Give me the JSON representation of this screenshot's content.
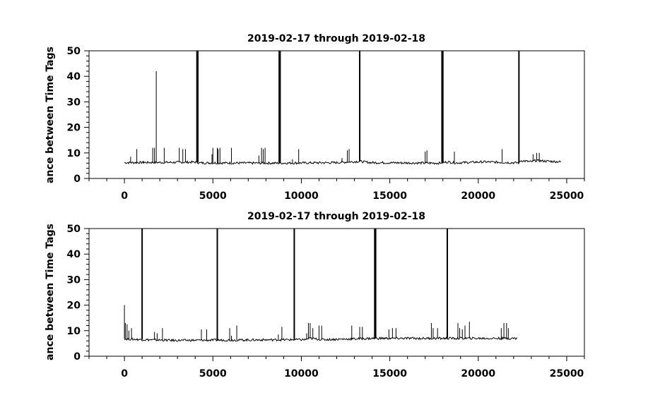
{
  "chart_data": [
    {
      "type": "line",
      "title": "2019-02-17 through 2019-02-18",
      "ylabel": "ance between Time Tags",
      "xlim": [
        -2000,
        26000
      ],
      "ylim": [
        0,
        50
      ],
      "xticks": [
        0,
        5000,
        10000,
        15000,
        20000,
        25000
      ],
      "xtick_labels": [
        "0",
        "5000",
        "10000",
        "15000",
        "20000",
        "25000"
      ],
      "yticks": [
        0,
        10,
        20,
        30,
        40,
        50
      ],
      "ytick_labels": [
        "0",
        "10",
        "20",
        "30",
        "40",
        "50"
      ],
      "grid": false,
      "series": [
        {
          "x_range": [
            0,
            24700
          ],
          "baseline": [
            [
              0,
              6.2
            ],
            [
              2800,
              6.3
            ],
            [
              4100,
              6.4
            ],
            [
              4200,
              6.1
            ],
            [
              8700,
              6.0
            ],
            [
              12000,
              6.2
            ],
            [
              13300,
              6.7
            ],
            [
              13900,
              6.2
            ],
            [
              17800,
              6.0
            ],
            [
              18300,
              6.5
            ],
            [
              18700,
              6.1
            ],
            [
              20300,
              6.5
            ],
            [
              22300,
              6.1
            ],
            [
              22400,
              7.0
            ],
            [
              23000,
              6.5
            ],
            [
              23200,
              7.0
            ],
            [
              24700,
              6.5
            ]
          ],
          "spikes": [
            [
              350,
              8.5
            ],
            [
              700,
              11.5
            ],
            [
              1100,
              6.8
            ],
            [
              1600,
              12.0
            ],
            [
              1700,
              12.0
            ],
            [
              1800,
              42.0
            ],
            [
              2250,
              12.0
            ],
            [
              3100,
              12.0
            ],
            [
              3300,
              11.5
            ],
            [
              3450,
              11.5
            ],
            [
              4100,
              50
            ],
            [
              4150,
              50
            ],
            [
              4950,
              9.5
            ],
            [
              5000,
              12.0
            ],
            [
              5250,
              12.0
            ],
            [
              5300,
              11.5
            ],
            [
              5400,
              12.0
            ],
            [
              6050,
              12.0
            ],
            [
              7600,
              9.0
            ],
            [
              7750,
              12.0
            ],
            [
              7850,
              11.5
            ],
            [
              7950,
              12.0
            ],
            [
              8750,
              50
            ],
            [
              8800,
              50
            ],
            [
              9500,
              7.5
            ],
            [
              9850,
              11.5
            ],
            [
              12300,
              8.0
            ],
            [
              12600,
              11.0
            ],
            [
              12700,
              11.5
            ],
            [
              13300,
              50
            ],
            [
              17000,
              10.5
            ],
            [
              17100,
              11.0
            ],
            [
              17950,
              50
            ],
            [
              18000,
              50
            ],
            [
              18650,
              10.5
            ],
            [
              21350,
              11.5
            ],
            [
              22300,
              50
            ],
            [
              23100,
              9.5
            ],
            [
              23300,
              10.0
            ],
            [
              23450,
              10.0
            ]
          ]
        }
      ]
    },
    {
      "type": "line",
      "title": "2019-02-17 through 2019-02-18",
      "ylabel": "ance between Time Tags",
      "xlim": [
        -2000,
        26000
      ],
      "ylim": [
        0,
        50
      ],
      "xticks": [
        0,
        5000,
        10000,
        15000,
        20000,
        25000
      ],
      "xtick_labels": [
        "0",
        "5000",
        "10000",
        "15000",
        "20000",
        "25000"
      ],
      "yticks": [
        0,
        10,
        20,
        30,
        40,
        50
      ],
      "ytick_labels": [
        "0",
        "10",
        "20",
        "30",
        "40",
        "50"
      ],
      "grid": false,
      "series": [
        {
          "x_range": [
            0,
            22200
          ],
          "baseline": [
            [
              0,
              6.8
            ],
            [
              1000,
              6.5
            ],
            [
              2800,
              6.2
            ],
            [
              10200,
              6.5
            ],
            [
              10500,
              7.0
            ],
            [
              11200,
              6.5
            ],
            [
              14200,
              7.0
            ],
            [
              22200,
              7.0
            ]
          ],
          "spikes": [
            [
              0,
              20.0
            ],
            [
              50,
              13.0
            ],
            [
              150,
              12.5
            ],
            [
              250,
              10.0
            ],
            [
              400,
              11.0
            ],
            [
              1000,
              50
            ],
            [
              1700,
              9.5
            ],
            [
              1850,
              9.0
            ],
            [
              2150,
              11.0
            ],
            [
              4350,
              10.5
            ],
            [
              4650,
              10.5
            ],
            [
              5250,
              50
            ],
            [
              5950,
              11.0
            ],
            [
              6050,
              8.0
            ],
            [
              6350,
              12.0
            ],
            [
              8700,
              8.5
            ],
            [
              8900,
              11.5
            ],
            [
              9600,
              50
            ],
            [
              10300,
              9.0
            ],
            [
              10400,
              13.0
            ],
            [
              10500,
              13.0
            ],
            [
              10650,
              11.0
            ],
            [
              11000,
              12.0
            ],
            [
              11150,
              12.0
            ],
            [
              12850,
              12.0
            ],
            [
              13300,
              11.5
            ],
            [
              13450,
              11.5
            ],
            [
              14150,
              50
            ],
            [
              14200,
              50
            ],
            [
              14950,
              10.5
            ],
            [
              15150,
              11.0
            ],
            [
              15350,
              11.0
            ],
            [
              17350,
              13.0
            ],
            [
              17450,
              11.0
            ],
            [
              17700,
              11.0
            ],
            [
              18250,
              50
            ],
            [
              18850,
              13.0
            ],
            [
              18950,
              11.0
            ],
            [
              19100,
              10.5
            ],
            [
              19250,
              12.0
            ],
            [
              19500,
              13.5
            ],
            [
              21300,
              11.0
            ],
            [
              21450,
              13.0
            ],
            [
              21600,
              13.0
            ],
            [
              21700,
              11.0
            ]
          ]
        }
      ]
    }
  ]
}
